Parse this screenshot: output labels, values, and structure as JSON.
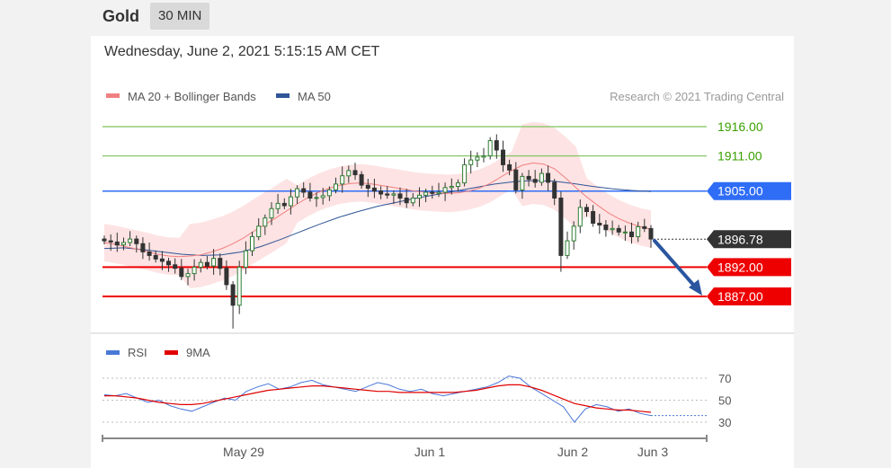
{
  "header": {
    "instrument": "Gold",
    "timeframe": "30 MIN"
  },
  "date_text": "Wednesday, June 2, 2021 5:15:15 AM CET",
  "legend": {
    "ma20": {
      "label": "MA 20 + Bollinger Bands",
      "color": "#f08080"
    },
    "ma50": {
      "label": "MA 50",
      "color": "#2f5597"
    }
  },
  "credit": "Research © 2021 Trading Central",
  "rsi_legend": {
    "rsi": {
      "label": "RSI",
      "color": "#4a78d8"
    },
    "ma9": {
      "label": "9MA",
      "color": "#e00000"
    }
  },
  "colors": {
    "green_level": "#7cc35a",
    "green_text": "#3aa000",
    "blue_level": "#2f6df6",
    "red_level": "#ee0000",
    "current_bg": "#333333",
    "arrow": "#2a56a0",
    "candle_up": "#2e7d32",
    "candle_down": "#333333",
    "band": "#fde0e0"
  },
  "chart_data": [
    {
      "type": "candlestick",
      "title": "",
      "x_ticks": [
        "May 29",
        "Jun 1",
        "Jun 2",
        "Jun 3"
      ],
      "y_range": [
        1880,
        1918
      ],
      "levels": [
        {
          "value": 1916.0,
          "label": "1916.00",
          "kind": "resistance"
        },
        {
          "value": 1911.0,
          "label": "1911.00",
          "kind": "resistance"
        },
        {
          "value": 1905.0,
          "label": "1905.00",
          "kind": "pivot"
        },
        {
          "value": 1896.78,
          "label": "1896.78",
          "kind": "current"
        },
        {
          "value": 1892.0,
          "label": "1892.00",
          "kind": "target"
        },
        {
          "value": 1887.0,
          "label": "1887.00",
          "kind": "target"
        }
      ],
      "close_series": [
        1896.5,
        1896.3,
        1895.8,
        1896.2,
        1896.8,
        1896.0,
        1894.6,
        1894.0,
        1893.4,
        1893.0,
        1892.4,
        1891.8,
        1890.4,
        1890.9,
        1892.0,
        1892.8,
        1892.2,
        1893.5,
        1891.8,
        1889.0,
        1885.5,
        1892.0,
        1894.8,
        1897.2,
        1899.0,
        1900.4,
        1902.0,
        1902.9,
        1902.5,
        1904.0,
        1905.4,
        1904.8,
        1903.8,
        1903.9,
        1904.2,
        1905.2,
        1906.2,
        1907.6,
        1908.5,
        1907.8,
        1906.0,
        1905.5,
        1905.0,
        1904.5,
        1904.3,
        1904.5,
        1903.8,
        1903.0,
        1903.8,
        1904.3,
        1904.8,
        1904.6,
        1904.8,
        1905.6,
        1905.8,
        1906.4,
        1909.5,
        1910.3,
        1910.8,
        1911.0,
        1913.6,
        1912.0,
        1909.5,
        1908.6,
        1905.2,
        1907.5,
        1907.0,
        1906.5,
        1908.0,
        1906.5,
        1903.8,
        1894.0,
        1896.5,
        1899.0,
        1902.2,
        1901.5,
        1899.5,
        1899.2,
        1898.4,
        1898.6,
        1898.0,
        1898.0,
        1897.2,
        1898.9,
        1898.6,
        1896.8
      ],
      "ma20_series": [
        1896.2,
        1895.9,
        1895.5,
        1895.1,
        1894.7,
        1894.2,
        1893.9,
        1893.8,
        1893.9,
        1894.1,
        1894.6,
        1895.2,
        1896.0,
        1897.0,
        1898.2,
        1899.3,
        1900.4,
        1901.6,
        1902.8,
        1903.9,
        1904.8,
        1905.5,
        1906.0,
        1906.3,
        1906.4,
        1906.2,
        1905.9,
        1905.6,
        1905.3,
        1905.0,
        1904.8,
        1904.7,
        1904.6,
        1904.7,
        1905.0,
        1905.5,
        1906.3,
        1907.4,
        1908.5,
        1909.4,
        1909.8,
        1909.6,
        1908.8,
        1907.3,
        1905.6,
        1904.0,
        1902.6,
        1901.3,
        1900.3,
        1899.5,
        1898.9,
        1898.5
      ],
      "ma50_series": [
        1895.2,
        1895.3,
        1895.0,
        1894.6,
        1894.2,
        1894.0,
        1894.1,
        1894.6,
        1895.5,
        1896.7,
        1898.0,
        1899.3,
        1900.5,
        1901.5,
        1902.4,
        1903.1,
        1903.8,
        1904.4,
        1905.0,
        1905.6,
        1906.2,
        1906.6,
        1906.8,
        1906.7,
        1906.3,
        1905.8,
        1905.4,
        1905.1,
        1904.9
      ]
    },
    {
      "type": "line",
      "title": "",
      "series": [
        {
          "name": "RSI",
          "values": [
            55,
            54,
            56,
            52,
            48,
            50,
            45,
            42,
            40,
            44,
            48,
            52,
            50,
            58,
            62,
            65,
            60,
            62,
            66,
            68,
            64,
            62,
            60,
            58,
            62,
            66,
            64,
            60,
            58,
            60,
            56,
            54,
            56,
            58,
            60,
            62,
            66,
            72,
            70,
            62,
            56,
            50,
            44,
            30,
            42,
            46,
            44,
            40,
            42,
            38,
            36
          ]
        },
        {
          "name": "9MA",
          "values": [
            54,
            54,
            53,
            52,
            50,
            48,
            47,
            46,
            46,
            47,
            49,
            51,
            53,
            55,
            57,
            59,
            60,
            61,
            62,
            63,
            63,
            62,
            61,
            60,
            59,
            58,
            58,
            57,
            57,
            57,
            57,
            57,
            57,
            58,
            59,
            61,
            63,
            64,
            64,
            62,
            59,
            55,
            51,
            47,
            45,
            43,
            42,
            41,
            41,
            40,
            39
          ]
        }
      ],
      "y_ticks": [
        "70",
        "50",
        "30"
      ],
      "y_range": [
        20,
        80
      ]
    }
  ]
}
